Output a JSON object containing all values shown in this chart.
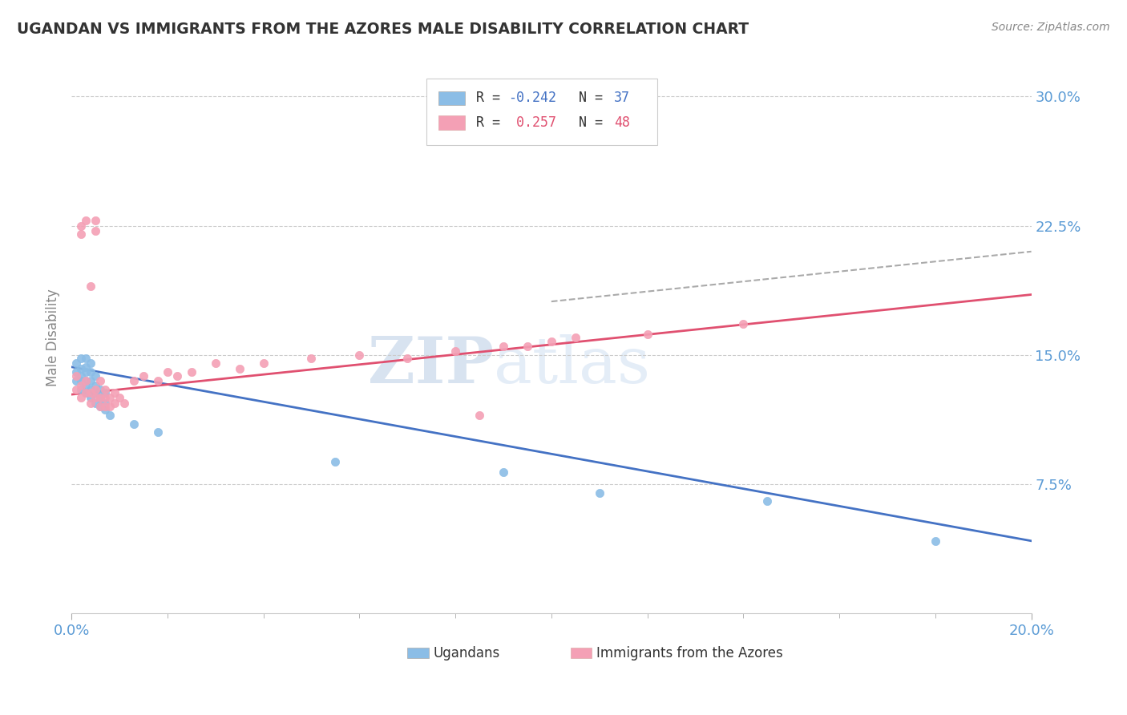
{
  "title": "UGANDAN VS IMMIGRANTS FROM THE AZORES MALE DISABILITY CORRELATION CHART",
  "source": "Source: ZipAtlas.com",
  "ylabel": "Male Disability",
  "xlim": [
    0.0,
    0.2
  ],
  "ylim": [
    0.0,
    0.32
  ],
  "yticks": [
    0.075,
    0.15,
    0.225,
    0.3
  ],
  "ytick_labels": [
    "7.5%",
    "15.0%",
    "22.5%",
    "30.0%"
  ],
  "ugandan_color": "#8bbde6",
  "azores_color": "#f4a0b5",
  "ugandan_line_color": "#4472c4",
  "azores_line_color": "#e05070",
  "watermark": "ZIPatlas",
  "background_color": "#ffffff",
  "grid_color": "#cccccc",
  "title_color": "#333333",
  "tick_color": "#5b9bd5",
  "ugandan_x": [
    0.001,
    0.001,
    0.001,
    0.002,
    0.002,
    0.002,
    0.002,
    0.002,
    0.003,
    0.003,
    0.003,
    0.003,
    0.003,
    0.003,
    0.004,
    0.004,
    0.004,
    0.004,
    0.004,
    0.005,
    0.005,
    0.005,
    0.005,
    0.006,
    0.006,
    0.006,
    0.007,
    0.007,
    0.007,
    0.008,
    0.013,
    0.018,
    0.055,
    0.09,
    0.11,
    0.145,
    0.18
  ],
  "ugandan_y": [
    0.135,
    0.14,
    0.145,
    0.13,
    0.135,
    0.138,
    0.142,
    0.148,
    0.128,
    0.132,
    0.135,
    0.14,
    0.143,
    0.148,
    0.125,
    0.13,
    0.135,
    0.14,
    0.145,
    0.122,
    0.128,
    0.132,
    0.138,
    0.12,
    0.125,
    0.13,
    0.118,
    0.122,
    0.128,
    0.115,
    0.11,
    0.105,
    0.088,
    0.082,
    0.07,
    0.065,
    0.042
  ],
  "azores_x": [
    0.001,
    0.001,
    0.002,
    0.002,
    0.002,
    0.002,
    0.003,
    0.003,
    0.003,
    0.004,
    0.004,
    0.004,
    0.005,
    0.005,
    0.005,
    0.005,
    0.006,
    0.006,
    0.006,
    0.007,
    0.007,
    0.007,
    0.008,
    0.008,
    0.009,
    0.009,
    0.01,
    0.011,
    0.013,
    0.015,
    0.018,
    0.02,
    0.022,
    0.025,
    0.03,
    0.035,
    0.04,
    0.05,
    0.06,
    0.07,
    0.08,
    0.085,
    0.09,
    0.095,
    0.1,
    0.105,
    0.12,
    0.14
  ],
  "azores_y": [
    0.13,
    0.138,
    0.125,
    0.132,
    0.22,
    0.225,
    0.128,
    0.135,
    0.228,
    0.122,
    0.128,
    0.19,
    0.125,
    0.13,
    0.222,
    0.228,
    0.12,
    0.125,
    0.135,
    0.12,
    0.125,
    0.13,
    0.12,
    0.125,
    0.122,
    0.128,
    0.125,
    0.122,
    0.135,
    0.138,
    0.135,
    0.14,
    0.138,
    0.14,
    0.145,
    0.142,
    0.145,
    0.148,
    0.15,
    0.148,
    0.152,
    0.115,
    0.155,
    0.155,
    0.158,
    0.16,
    0.162,
    0.168
  ]
}
